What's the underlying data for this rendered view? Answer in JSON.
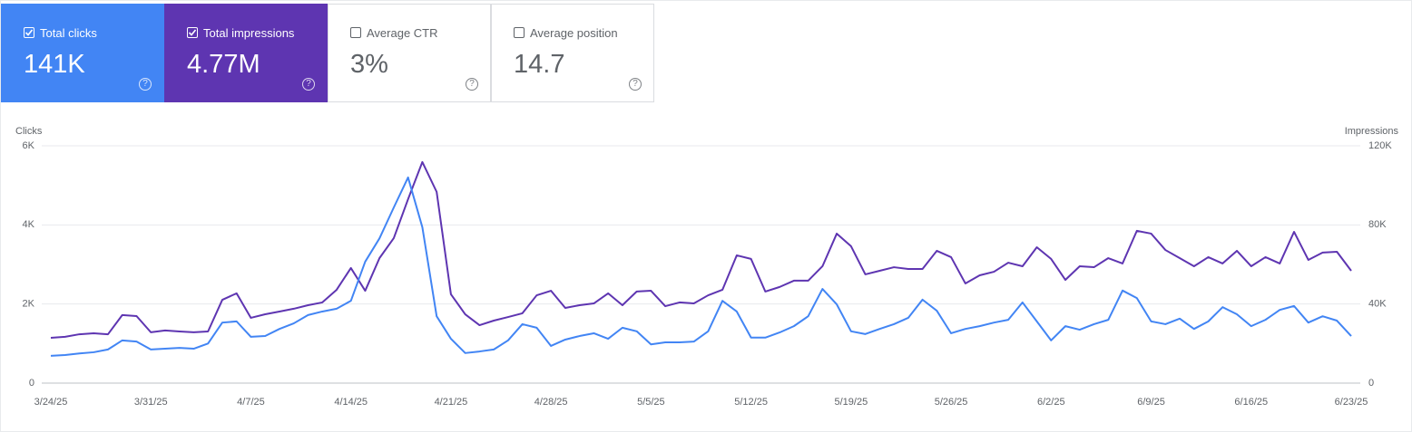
{
  "cards": [
    {
      "label": "Total clicks",
      "value": "141K",
      "checked": true,
      "color": "#4285f4"
    },
    {
      "label": "Total impressions",
      "value": "4.77M",
      "checked": true,
      "color": "#5e35b1"
    },
    {
      "label": "Average CTR",
      "value": "3%",
      "checked": false
    },
    {
      "label": "Average position",
      "value": "14.7",
      "checked": false
    }
  ],
  "chart_data": {
    "type": "line",
    "y_label": "Clicks",
    "y2_label": "Impressions",
    "categories": [
      "3/24/25",
      null,
      null,
      null,
      null,
      null,
      null,
      "3/31/25",
      null,
      null,
      null,
      null,
      null,
      null,
      "4/7/25",
      null,
      null,
      null,
      null,
      null,
      null,
      "4/14/25",
      null,
      null,
      null,
      null,
      null,
      null,
      "4/21/25",
      null,
      null,
      null,
      null,
      null,
      null,
      "4/28/25",
      null,
      null,
      null,
      null,
      null,
      null,
      "5/5/25",
      null,
      null,
      null,
      null,
      null,
      null,
      "5/12/25",
      null,
      null,
      null,
      null,
      null,
      null,
      "5/19/25",
      null,
      null,
      null,
      null,
      null,
      null,
      "5/26/25",
      null,
      null,
      null,
      null,
      null,
      null,
      "6/2/25",
      null,
      null,
      null,
      null,
      null,
      null,
      "6/9/25",
      null,
      null,
      null,
      null,
      null,
      null,
      "6/16/25",
      null,
      null,
      null,
      null,
      null,
      null,
      "6/23/25"
    ],
    "series": [
      {
        "color": "#4285f4",
        "axis": "y",
        "values": [
          690,
          710,
          750,
          780,
          850,
          1080,
          1050,
          850,
          870,
          890,
          870,
          1000,
          1530,
          1560,
          1170,
          1190,
          1370,
          1510,
          1720,
          1810,
          1880,
          2080,
          3070,
          3660,
          4440,
          5200,
          3940,
          1690,
          1120,
          760,
          800,
          850,
          1080,
          1490,
          1400,
          940,
          1100,
          1190,
          1260,
          1120,
          1400,
          1310,
          980,
          1030,
          1030,
          1050,
          1310,
          2080,
          1810,
          1150,
          1150,
          1280,
          1440,
          1690,
          2380,
          1990,
          1310,
          1240,
          1370,
          1490,
          1650,
          2110,
          1830,
          1260,
          1370,
          1440,
          1530,
          1600,
          2040,
          1560,
          1080,
          1440,
          1350,
          1490,
          1600,
          2340,
          2150,
          1560,
          1490,
          1630,
          1370,
          1560,
          1920,
          1740,
          1440,
          1600,
          1850,
          1950,
          1530,
          1690,
          1580,
          1190
        ]
      },
      {
        "color": "#5e35b1",
        "axis": "y2",
        "values": [
          22900,
          23400,
          24700,
          25200,
          24700,
          34400,
          33900,
          25700,
          26600,
          26100,
          25700,
          26100,
          42100,
          45400,
          33000,
          34800,
          36200,
          37600,
          39400,
          40800,
          47200,
          58200,
          46700,
          63200,
          73300,
          93000,
          111800,
          96700,
          44900,
          34800,
          29300,
          31600,
          33400,
          35300,
          44400,
          46700,
          38000,
          39400,
          40300,
          45400,
          39400,
          46300,
          46700,
          38900,
          40800,
          40300,
          44400,
          47200,
          64600,
          62800,
          46300,
          48600,
          51800,
          51800,
          59100,
          75600,
          69200,
          55000,
          56800,
          58600,
          57700,
          57700,
          66900,
          63700,
          50400,
          54500,
          56300,
          60900,
          59100,
          68700,
          62800,
          52200,
          59100,
          58600,
          63200,
          60500,
          77000,
          75600,
          67300,
          63200,
          59100,
          63700,
          60500,
          66900,
          59100,
          63700,
          60500,
          76500,
          62300,
          66000,
          66400,
          56800
        ]
      }
    ],
    "ylim": [
      0,
      6000
    ],
    "yticks": [
      0,
      {
        "value": 2000,
        "label": "2K"
      },
      {
        "value": 4000,
        "label": "4K"
      },
      {
        "value": 6000,
        "label": "6K"
      }
    ],
    "y2lim": [
      0,
      120000
    ],
    "y2ticks": [
      0,
      {
        "value": 40000,
        "label": "40K"
      },
      {
        "value": 80000,
        "label": "80K"
      },
      {
        "value": 120000,
        "label": "120K"
      }
    ],
    "grid": true
  }
}
